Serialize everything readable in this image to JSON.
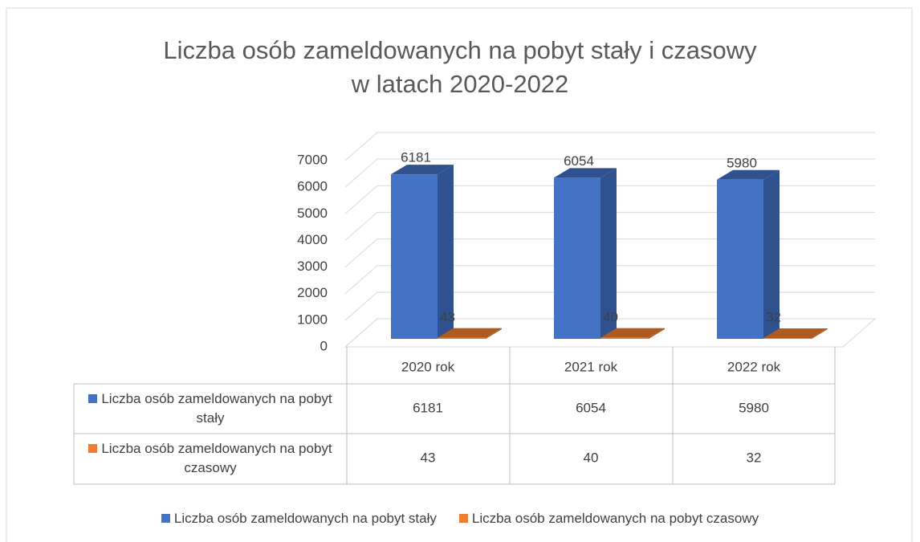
{
  "chart_data": {
    "type": "bar3d",
    "title": "Liczba osób zameldowanych na pobyt stały i czasowy\nw latach 2020-2022",
    "categories": [
      "2020 rok",
      "2021 rok",
      "2022 rok"
    ],
    "series": [
      {
        "name": "Liczba osób zameldowanych na pobyt stały",
        "color": "#4472c4",
        "side": "#2f528f",
        "values": [
          6181,
          6054,
          5980
        ]
      },
      {
        "name": "Liczba osób zameldowanych na pobyt czasowy",
        "color": "#ed7d31",
        "side": "#ae5a21",
        "values": [
          43,
          40,
          32
        ]
      }
    ],
    "ylim": [
      0,
      7000
    ],
    "yticks": [
      0,
      1000,
      2000,
      3000,
      4000,
      5000,
      6000,
      7000
    ],
    "grid": true,
    "legend": "bottom",
    "data_table": true
  }
}
